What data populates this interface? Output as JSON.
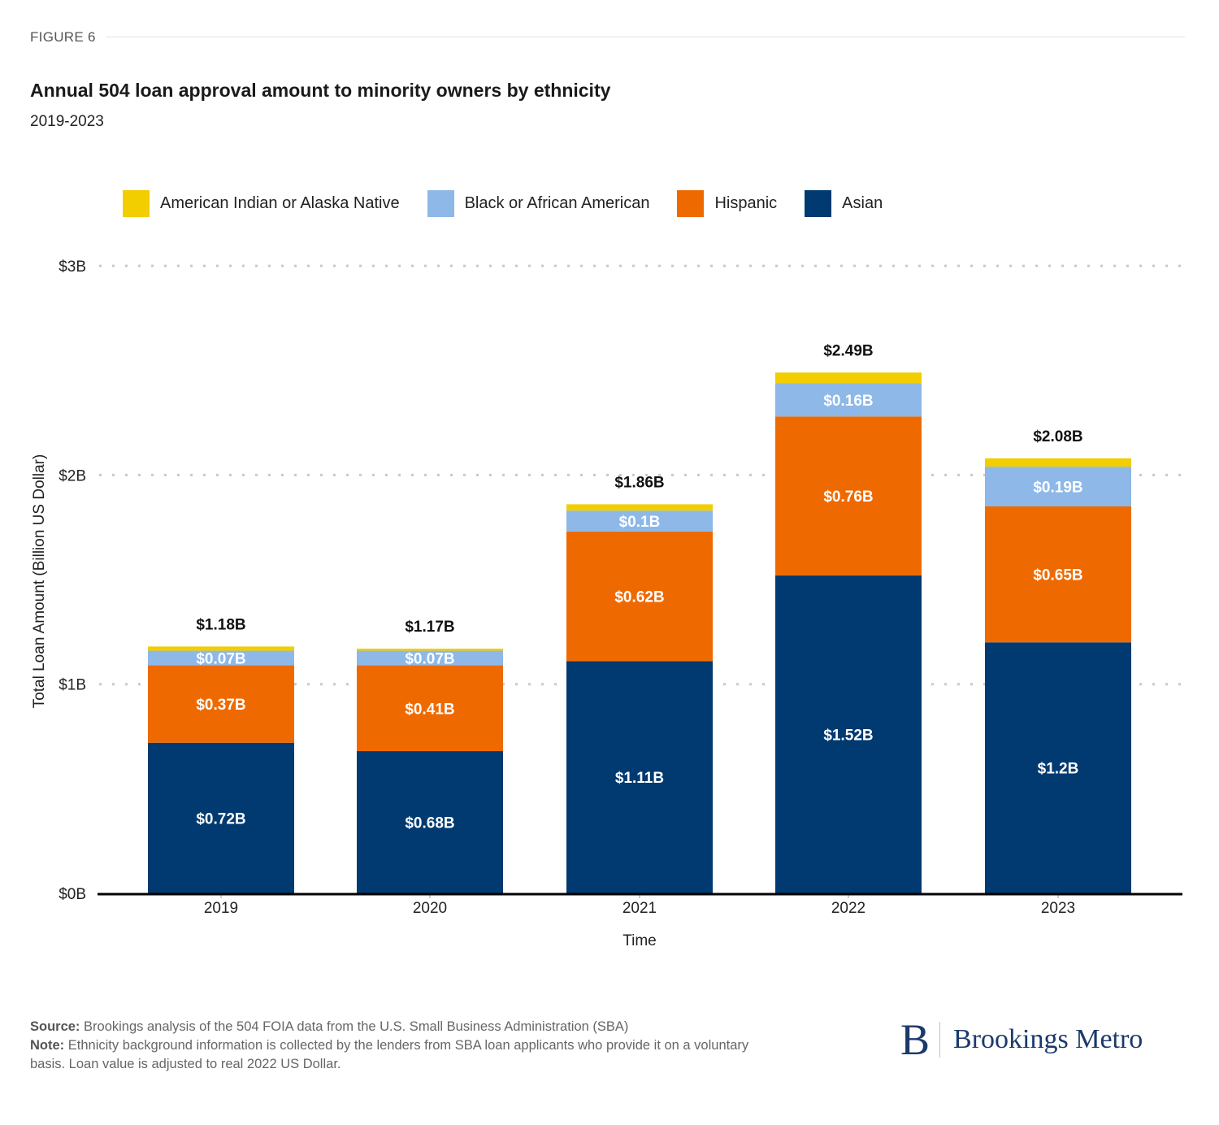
{
  "figure_label": "FIGURE 6",
  "title": "Annual 504 loan approval amount to minority owners by ethnicity",
  "subtitle": "2019-2023",
  "legend": [
    {
      "label": "American Indian or Alaska Native",
      "color": "#f2cd00"
    },
    {
      "label": "Black or African American",
      "color": "#8db8e8"
    },
    {
      "label": "Hispanic",
      "color": "#ee6a00"
    },
    {
      "label": "Asian",
      "color": "#003a70"
    }
  ],
  "chart_data": {
    "type": "bar",
    "stacked": true,
    "title": "Annual 504 loan approval amount to minority owners by ethnicity",
    "subtitle": "2019-2023",
    "xlabel": "Time",
    "ylabel": "Total Loan Amount (Billion US Dollar)",
    "categories": [
      "2019",
      "2020",
      "2021",
      "2022",
      "2023"
    ],
    "ylim": [
      0,
      3
    ],
    "yticks": [
      0,
      1,
      2,
      3
    ],
    "ytick_labels": [
      "$0B",
      "$1B",
      "$2B",
      "$3B"
    ],
    "grid": "horizontal dotted",
    "legend_position": "top",
    "series": [
      {
        "name": "Asian",
        "color": "#003a70",
        "values": [
          0.72,
          0.68,
          1.11,
          1.52,
          1.2
        ],
        "labels": [
          "$0.72B",
          "$0.68B",
          "$1.11B",
          "$1.52B",
          "$1.2B"
        ]
      },
      {
        "name": "Hispanic",
        "color": "#ee6a00",
        "values": [
          0.37,
          0.41,
          0.62,
          0.76,
          0.65
        ],
        "labels": [
          "$0.37B",
          "$0.41B",
          "$0.62B",
          "$0.76B",
          "$0.65B"
        ]
      },
      {
        "name": "Black or African American",
        "color": "#8db8e8",
        "values": [
          0.07,
          0.07,
          0.1,
          0.16,
          0.19
        ],
        "labels": [
          "$0.07B",
          "$0.07B",
          "$0.1B",
          "$0.16B",
          "$0.19B"
        ]
      },
      {
        "name": "American Indian or Alaska Native",
        "color": "#f2cd00",
        "values": [
          0.02,
          0.01,
          0.03,
          0.05,
          0.04
        ],
        "labels": [
          "",
          "",
          "",
          "",
          ""
        ]
      }
    ],
    "totals": [
      1.18,
      1.17,
      1.86,
      2.49,
      2.08
    ],
    "total_labels": [
      "$1.18B",
      "$1.17B",
      "$1.86B",
      "$2.49B",
      "$2.08B"
    ]
  },
  "footer": {
    "source_label": "Source:",
    "source_text": " Brookings analysis of the 504 FOIA data from the U.S. Small Business Administration (SBA)",
    "note_label": "Note:",
    "note_text": " Ethnicity background information is collected by the lenders from SBA loan applicants who provide it on a voluntary basis. Loan value is adjusted to real 2022 US Dollar."
  },
  "logo": {
    "mark": "B",
    "text": "Brookings Metro"
  }
}
